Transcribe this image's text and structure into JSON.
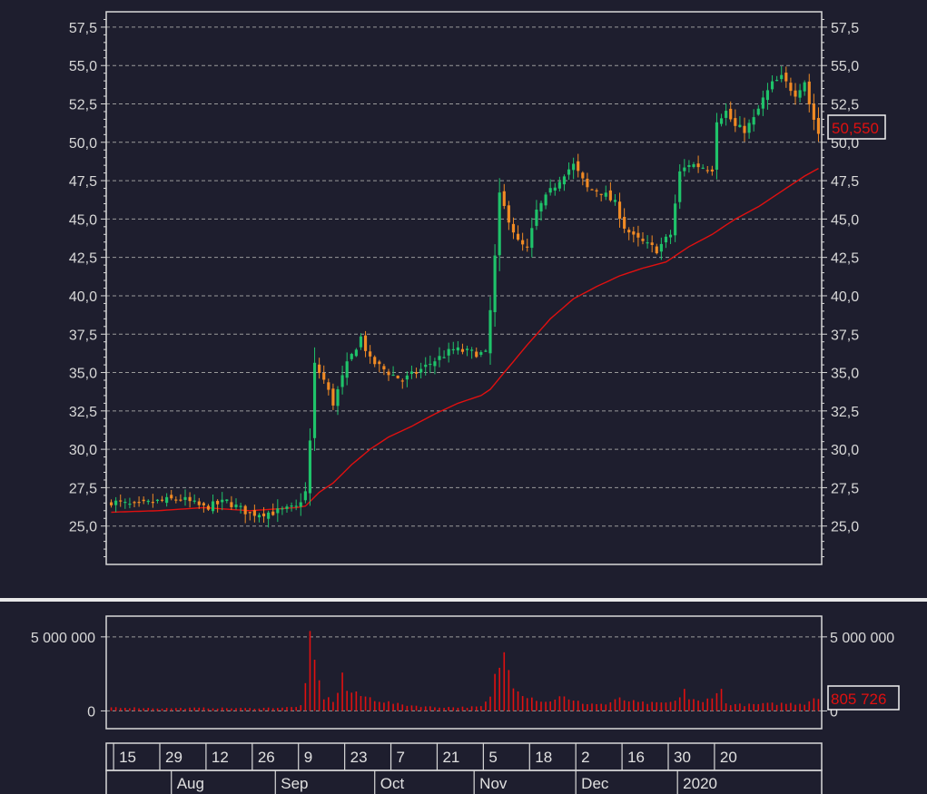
{
  "colors": {
    "background": "#1e1e2e",
    "up_candle": "#1fc36a",
    "down_candle": "#f08a24",
    "moving_average": "#e01010",
    "volume": "#e01010",
    "grid": "#9a9a9a",
    "frame": "#d8d8d8",
    "last_value_text": "#e01010"
  },
  "price_panel": {
    "last_price_label": "50,550",
    "last_price": 50.55
  },
  "volume_panel": {
    "last_volume_label": "805 726",
    "last_volume": 805726
  },
  "chart_data": [
    {
      "type": "candlestick",
      "panel": "price",
      "ylim": [
        22.5,
        58.5
      ],
      "ticks": [
        25.0,
        27.5,
        30.0,
        32.5,
        35.0,
        37.5,
        40.0,
        42.5,
        45.0,
        47.5,
        50.0,
        52.5,
        55.0,
        57.5
      ],
      "tick_labels": [
        "25,0",
        "27,5",
        "30,0",
        "32,5",
        "35,0",
        "37,5",
        "40,0",
        "42,5",
        "45,0",
        "47,5",
        "50,0",
        "52,5",
        "55,0",
        "57,5"
      ],
      "grid": true,
      "close_path": [
        [
          0,
          26.6
        ],
        [
          5,
          26.3
        ],
        [
          10,
          26.6
        ],
        [
          15,
          26.8
        ],
        [
          20,
          26.2
        ],
        [
          25,
          26.6
        ],
        [
          30,
          25.8
        ],
        [
          35,
          25.9
        ],
        [
          40,
          26.2
        ],
        [
          42,
          27.2
        ],
        [
          43,
          30.5
        ],
        [
          44,
          35.5
        ],
        [
          46,
          34.5
        ],
        [
          48,
          33.0
        ],
        [
          51,
          35.5
        ],
        [
          54,
          37.3
        ],
        [
          56,
          35.8
        ],
        [
          60,
          35.0
        ],
        [
          63,
          34.5
        ],
        [
          66,
          35.0
        ],
        [
          70,
          35.8
        ],
        [
          74,
          36.5
        ],
        [
          78,
          36.3
        ],
        [
          81,
          36.2
        ],
        [
          82,
          39.0
        ],
        [
          83,
          42.5
        ],
        [
          84,
          46.5
        ],
        [
          86,
          45.0
        ],
        [
          88,
          43.5
        ],
        [
          90,
          43.0
        ],
        [
          92,
          45.5
        ],
        [
          95,
          46.8
        ],
        [
          98,
          48.0
        ],
        [
          100,
          48.5
        ],
        [
          101,
          48.0
        ],
        [
          103,
          47.0
        ],
        [
          106,
          46.8
        ],
        [
          109,
          46.0
        ],
        [
          111,
          44.5
        ],
        [
          113,
          43.8
        ],
        [
          116,
          43.3
        ],
        [
          118,
          43.0
        ],
        [
          121,
          44.0
        ],
        [
          123,
          48.0
        ],
        [
          125,
          48.6
        ],
        [
          128,
          48.4
        ],
        [
          130,
          48.3
        ],
        [
          131,
          51.5
        ],
        [
          133,
          52.0
        ],
        [
          135,
          51.0
        ],
        [
          137,
          50.8
        ],
        [
          139,
          51.5
        ],
        [
          141,
          52.8
        ],
        [
          143,
          53.8
        ],
        [
          145,
          54.2
        ],
        [
          147,
          53.5
        ],
        [
          148,
          53.2
        ],
        [
          150,
          54.0
        ],
        [
          151,
          52.5
        ],
        [
          152,
          51.5
        ],
        [
          153,
          50.55
        ]
      ],
      "moving_average": [
        [
          0,
          25.9
        ],
        [
          10,
          26.0
        ],
        [
          20,
          26.2
        ],
        [
          30,
          26.0
        ],
        [
          40,
          26.2
        ],
        [
          42,
          26.3
        ],
        [
          45,
          27.2
        ],
        [
          48,
          27.8
        ],
        [
          52,
          29.0
        ],
        [
          56,
          30.0
        ],
        [
          60,
          30.8
        ],
        [
          65,
          31.5
        ],
        [
          70,
          32.3
        ],
        [
          75,
          33.0
        ],
        [
          80,
          33.5
        ],
        [
          82,
          33.9
        ],
        [
          85,
          35.0
        ],
        [
          90,
          36.8
        ],
        [
          95,
          38.5
        ],
        [
          100,
          39.8
        ],
        [
          105,
          40.6
        ],
        [
          110,
          41.3
        ],
        [
          115,
          41.8
        ],
        [
          120,
          42.2
        ],
        [
          125,
          43.2
        ],
        [
          130,
          44.0
        ],
        [
          135,
          45.0
        ],
        [
          140,
          45.8
        ],
        [
          145,
          46.8
        ],
        [
          150,
          47.8
        ],
        [
          153,
          48.3
        ]
      ]
    },
    {
      "type": "bar",
      "panel": "volume",
      "ylim": [
        -1200000,
        6400000
      ],
      "ticks": [
        0,
        5000000
      ],
      "tick_labels": [
        "0",
        "5 000 000"
      ],
      "grid": true,
      "volume_path": [
        [
          0,
          250000
        ],
        [
          10,
          180000
        ],
        [
          20,
          200000
        ],
        [
          30,
          180000
        ],
        [
          40,
          250000
        ],
        [
          41,
          450000
        ],
        [
          42,
          1600000
        ],
        [
          43,
          4500000
        ],
        [
          44,
          3300000
        ],
        [
          45,
          1900000
        ],
        [
          46,
          900000
        ],
        [
          48,
          700000
        ],
        [
          49,
          1300000
        ],
        [
          50,
          2400000
        ],
        [
          51,
          1400000
        ],
        [
          53,
          1100000
        ],
        [
          55,
          950000
        ],
        [
          58,
          700000
        ],
        [
          62,
          450000
        ],
        [
          66,
          350000
        ],
        [
          70,
          250000
        ],
        [
          75,
          250000
        ],
        [
          80,
          280000
        ],
        [
          82,
          900000
        ],
        [
          83,
          2200000
        ],
        [
          84,
          3200000
        ],
        [
          85,
          3700000
        ],
        [
          86,
          2800000
        ],
        [
          87,
          1900000
        ],
        [
          89,
          1200000
        ],
        [
          91,
          900000
        ],
        [
          93,
          700000
        ],
        [
          95,
          600000
        ],
        [
          97,
          1100000
        ],
        [
          99,
          700000
        ],
        [
          103,
          500000
        ],
        [
          107,
          450000
        ],
        [
          110,
          800000
        ],
        [
          114,
          550000
        ],
        [
          118,
          500000
        ],
        [
          122,
          600000
        ],
        [
          124,
          1500000
        ],
        [
          125,
          800000
        ],
        [
          128,
          550000
        ],
        [
          131,
          1300000
        ],
        [
          132,
          1350000
        ],
        [
          133,
          500000
        ],
        [
          137,
          400000
        ],
        [
          140,
          450000
        ],
        [
          145,
          500000
        ],
        [
          150,
          500000
        ],
        [
          152,
          900000
        ],
        [
          153,
          805726
        ]
      ]
    }
  ],
  "x_axis": {
    "day_ticks": [
      {
        "label": "15",
        "index": 1
      },
      {
        "label": "29",
        "index": 11
      },
      {
        "label": "12",
        "index": 21
      },
      {
        "label": "26",
        "index": 31
      },
      {
        "label": "9",
        "index": 41
      },
      {
        "label": "23",
        "index": 51
      },
      {
        "label": "7",
        "index": 61
      },
      {
        "label": "21",
        "index": 71
      },
      {
        "label": "5",
        "index": 81
      },
      {
        "label": "18",
        "index": 91
      },
      {
        "label": "2",
        "index": 101
      },
      {
        "label": "16",
        "index": 111
      },
      {
        "label": "30",
        "index": 121
      },
      {
        "label": "20",
        "index": 131
      }
    ],
    "month_ticks": [
      {
        "label": "Aug",
        "index": 13.5
      },
      {
        "label": "Sep",
        "index": 36
      },
      {
        "label": "Oct",
        "index": 57.5
      },
      {
        "label": "Nov",
        "index": 79
      },
      {
        "label": "Dec",
        "index": 101
      },
      {
        "label": "2020",
        "index": 123
      }
    ]
  }
}
